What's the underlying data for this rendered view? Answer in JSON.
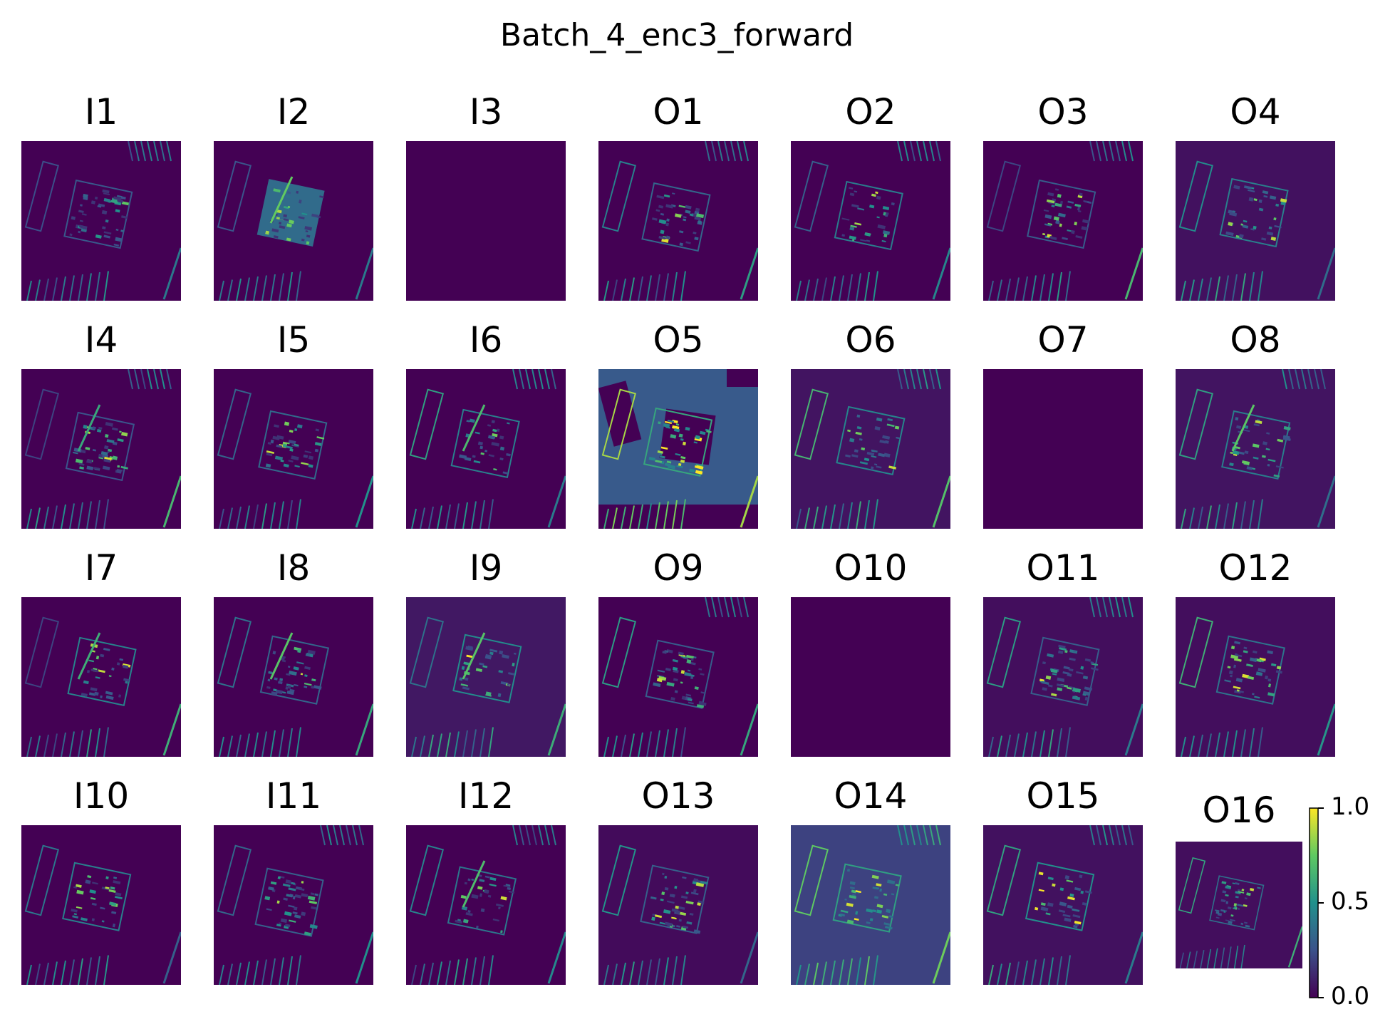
{
  "figure_title": "Batch_4_enc3_forward",
  "chart_data": {
    "type": "heatmap",
    "title": "Batch_4_enc3_forward",
    "grid_rows": 4,
    "grid_cols": 7,
    "panels": [
      "I1",
      "I2",
      "I3",
      "O1",
      "O2",
      "O3",
      "O4",
      "I4",
      "I5",
      "I6",
      "O5",
      "O6",
      "O7",
      "O8",
      "I7",
      "I8",
      "I9",
      "O9",
      "O10",
      "O11",
      "O12",
      "I10",
      "I11",
      "I12",
      "O13",
      "O14",
      "O15",
      "O16"
    ],
    "colorbar": {
      "colormap": "viridis",
      "range": [
        0.0,
        1.0
      ],
      "ticks": [
        {
          "value": 0.0,
          "label": "0.0"
        },
        {
          "value": 0.5,
          "label": "0.5"
        },
        {
          "value": 1.0,
          "label": "1.0"
        }
      ]
    },
    "axes": "off"
  },
  "colors": {
    "viridis_low": "#440154",
    "viridis_mid": "#21918c",
    "viridis_high": "#fde725"
  }
}
